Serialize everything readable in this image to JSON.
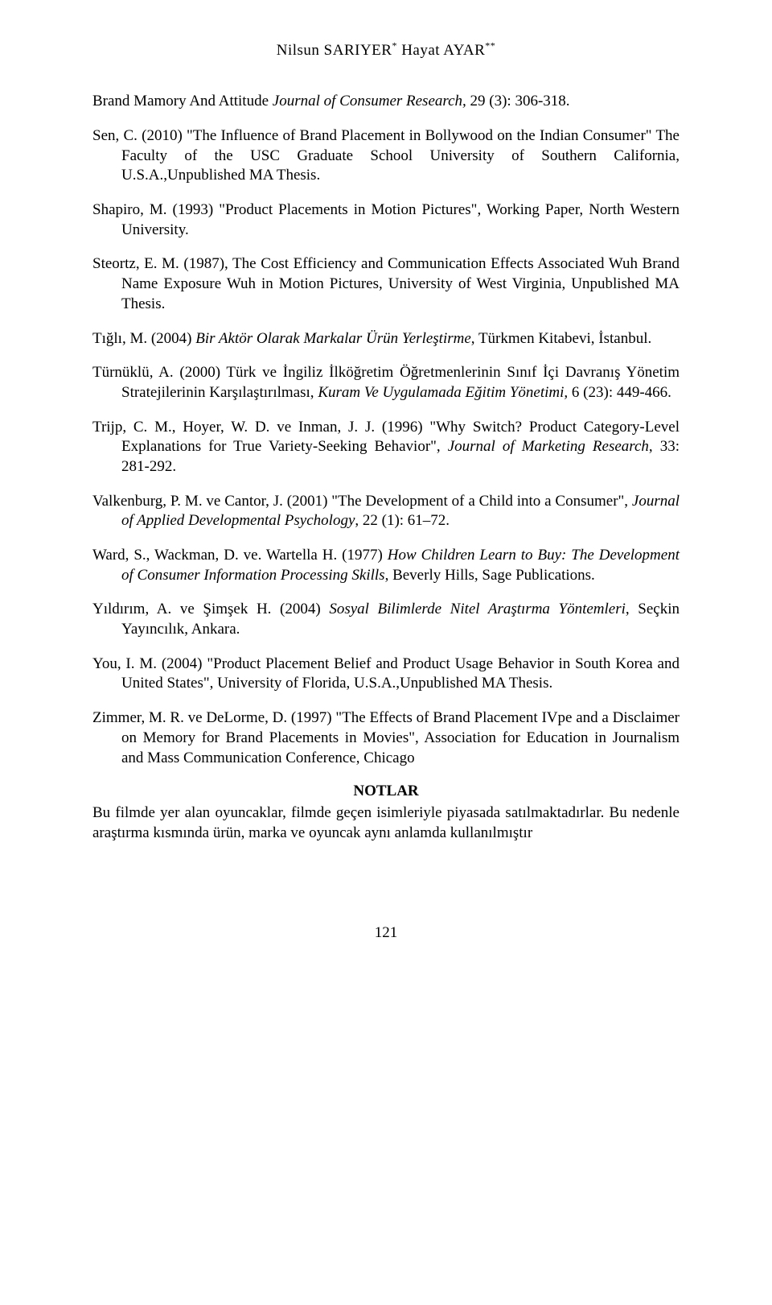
{
  "header": {
    "author1": "Nilsun SARIYER",
    "sup1": "*",
    "separator": " ",
    "author2": "Hayat AYAR",
    "sup2": "**"
  },
  "references": {
    "r1": {
      "prefix": "Brand Mamory And Attitude ",
      "italic": "Journal of Consumer Research,",
      "suffix": " 29 (3): 306-318."
    },
    "r2": {
      "text": "Sen, C. (2010) \"The Influence of Brand Placement in Bollywood on the Indian Consumer\" The Faculty of the USC Graduate School University of Southern California, U.S.A.,Unpublished MA Thesis."
    },
    "r3": {
      "text": "Shapiro, M. (1993) \"Product Placements in Motion Pictures\", Working Paper, North Western University."
    },
    "r4": {
      "text": "Steortz, E. M. (1987), The Cost Efficiency and Communication Effects Associated Wuh Brand Name Exposure Wuh in Motion Pictures, University of West Virginia, Unpublished MA Thesis."
    },
    "r5": {
      "prefix": "Tığlı, M. (2004) ",
      "italic": "Bir Aktör Olarak Markalar Ürün Yerleştirme",
      "suffix": ", Türkmen Kitabevi, İstanbul."
    },
    "r6": {
      "prefix": "Türnüklü, A. (2000) Türk ve İngiliz İlköğretim Öğretmenlerinin Sınıf İçi Davranış Yönetim Stratejilerinin Karşılaştırılması, ",
      "italic": "Kuram Ve Uygulamada Eğitim Yönetimi,",
      "suffix": " 6 (23): 449-466."
    },
    "r7": {
      "prefix": "Trijp, C. M., Hoyer, W. D. ve Inman, J. J. (1996) \"Why Switch? Product Category-Level Explanations for True Variety-Seeking Behavior\", ",
      "italic": "Journal of Marketing Research",
      "suffix": ", 33: 281-292."
    },
    "r8": {
      "prefix": "Valkenburg, P. M. ve Cantor, J. (2001) \"The Development of a Child into a Consumer\", ",
      "italic": "Journal of Applied Developmental Psychology",
      "suffix": ",  22 (1): 61–72."
    },
    "r9": {
      "prefix": "Ward, S., Wackman, D. ve. Wartella H. (1977) ",
      "italic": "How Children Learn to Buy: The Development of Consumer Information Processing Skills",
      "suffix": ", Beverly Hills, Sage Publications."
    },
    "r10": {
      "prefix": "Yıldırım, A. ve Şimşek H. (2004) ",
      "italic": "Sosyal Bilimlerde Nitel Araştırma Yöntemleri",
      "suffix": ", Seçkin Yayıncılık, Ankara."
    },
    "r11": {
      "text": "You, I. M. (2004) \"Product Placement Belief and Product Usage Behavior in South Korea and United States\", University of Florida, U.S.A.,Unpublished MA Thesis."
    },
    "r12": {
      "text": "Zimmer, M. R. ve DeLorme, D. (1997) \"The Effects of Brand Placement IVpe and a Disclaimer on Memory for Brand Placements in Movies\", Association for Education in Journalism and Mass Communication Conference, Chicago"
    }
  },
  "notes": {
    "heading": "NOTLAR",
    "text": "Bu filmde yer alan oyuncaklar, filmde geçen isimleriyle piyasada satılmaktadırlar. Bu nedenle araştırma kısmında ürün, marka ve oyuncak aynı anlamda kullanılmıştır"
  },
  "page_number": "121"
}
